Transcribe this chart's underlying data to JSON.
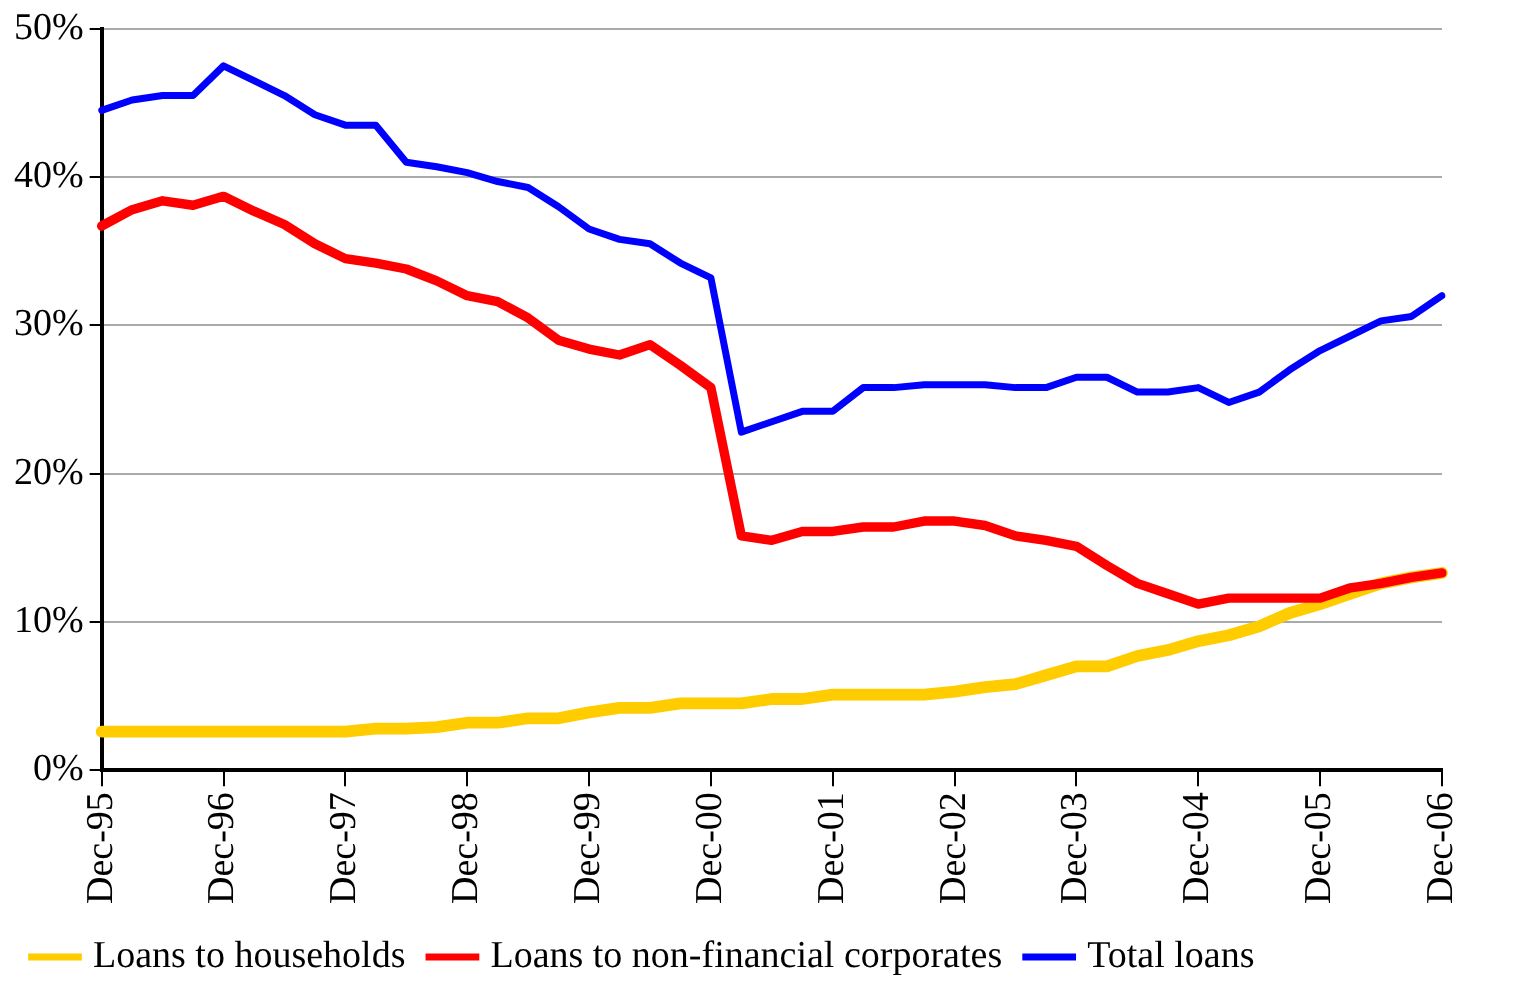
{
  "chart_data": {
    "type": "line",
    "categories": [
      "Dec-95",
      null,
      null,
      null,
      "Dec-96",
      null,
      null,
      null,
      "Dec-97",
      null,
      null,
      null,
      "Dec-98",
      null,
      null,
      null,
      "Dec-99",
      null,
      null,
      null,
      "Dec-00",
      null,
      null,
      null,
      "Dec-01",
      null,
      null,
      null,
      "Dec-02",
      null,
      null,
      null,
      "Dec-03",
      null,
      null,
      null,
      "Dec-04",
      null,
      null,
      null,
      "Dec-05",
      null,
      null,
      null,
      "Dec-06"
    ],
    "series": [
      {
        "name": "Loans to households",
        "color": "#ffcc00",
        "values": [
          2.6,
          2.6,
          2.6,
          2.6,
          2.6,
          2.6,
          2.6,
          2.6,
          2.6,
          2.8,
          2.8,
          2.9,
          3.2,
          3.2,
          3.5,
          3.5,
          3.9,
          4.2,
          4.2,
          4.5,
          4.5,
          4.5,
          4.8,
          4.8,
          5.1,
          5.1,
          5.1,
          5.1,
          5.3,
          5.6,
          5.8,
          6.4,
          7.0,
          7.0,
          7.7,
          8.1,
          8.7,
          9.1,
          9.7,
          10.6,
          11.2,
          11.9,
          12.6,
          13.0,
          13.3
        ]
      },
      {
        "name": "Loans to non-financial corporates",
        "color": "#ff0000",
        "values": [
          36.7,
          37.8,
          38.4,
          38.1,
          38.7,
          37.7,
          36.8,
          35.5,
          34.5,
          34.2,
          33.8,
          33.0,
          32.0,
          31.6,
          30.5,
          29.0,
          28.4,
          28.0,
          28.7,
          27.3,
          25.8,
          15.8,
          15.5,
          16.1,
          16.1,
          16.4,
          16.4,
          16.8,
          16.8,
          16.5,
          15.8,
          15.5,
          15.1,
          13.8,
          12.6,
          11.9,
          11.2,
          11.6,
          11.6,
          11.6,
          11.6,
          12.3,
          12.6,
          13.0,
          13.3
        ]
      },
      {
        "name": "Total loans",
        "color": "#0000ff",
        "values": [
          44.5,
          45.2,
          45.5,
          45.5,
          47.5,
          46.5,
          45.5,
          44.2,
          43.5,
          43.5,
          41.0,
          40.7,
          40.3,
          39.7,
          39.3,
          38.0,
          36.5,
          35.8,
          35.5,
          34.2,
          33.2,
          22.8,
          23.5,
          24.2,
          24.2,
          25.8,
          25.8,
          26.0,
          26.0,
          26.0,
          25.8,
          25.8,
          26.5,
          26.5,
          25.5,
          25.5,
          25.8,
          24.8,
          25.5,
          27.0,
          28.3,
          29.3,
          30.3,
          30.6,
          32.0
        ]
      }
    ],
    "ylim": [
      0,
      50
    ],
    "yticks": [
      {
        "value": 0,
        "label": "0%"
      },
      {
        "value": 10,
        "label": "10%"
      },
      {
        "value": 20,
        "label": "20%"
      },
      {
        "value": 30,
        "label": "30%"
      },
      {
        "value": 40,
        "label": "40%"
      },
      {
        "value": 50,
        "label": "50%"
      }
    ],
    "grid": "y",
    "legend": "bottom",
    "marker": "none",
    "line_style": "solid"
  }
}
